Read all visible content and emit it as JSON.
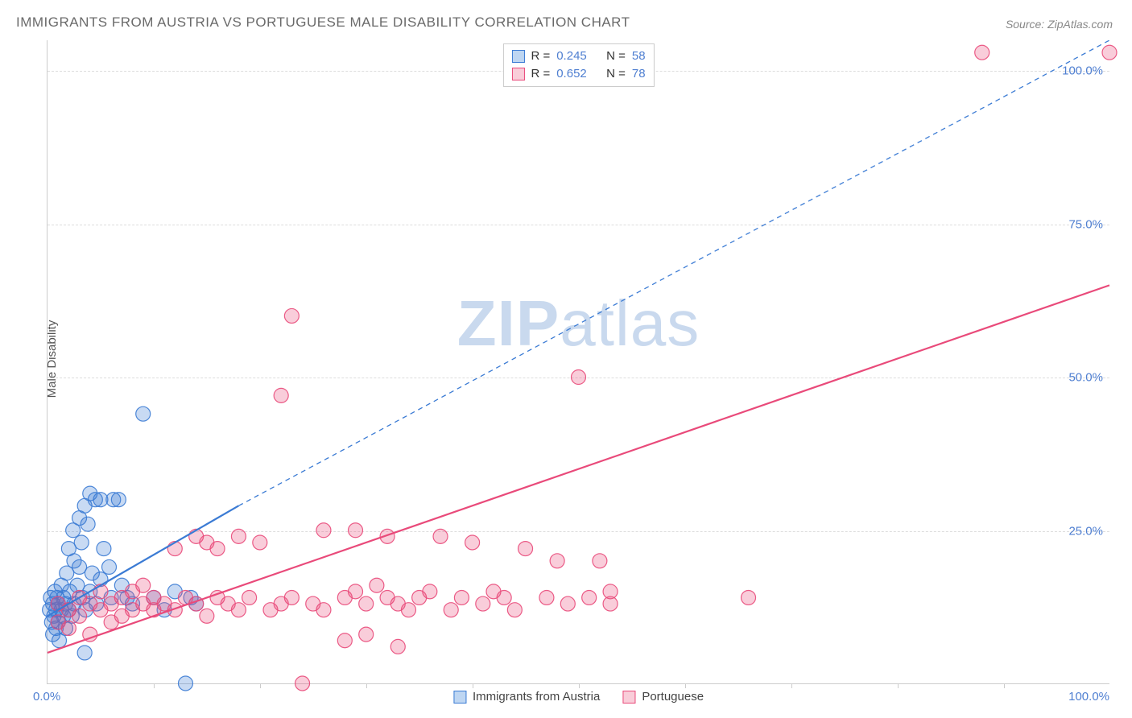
{
  "title": "IMMIGRANTS FROM AUSTRIA VS PORTUGUESE MALE DISABILITY CORRELATION CHART",
  "source_label": "Source: ZipAtlas.com",
  "watermark": {
    "bold": "ZIP",
    "light": "atlas",
    "color": "#c9d9ee"
  },
  "ylabel": "Male Disability",
  "chart": {
    "type": "scatter",
    "background_color": "#ffffff",
    "grid_color": "#dddddd",
    "axis_color": "#cccccc",
    "xlim": [
      0,
      100
    ],
    "ylim": [
      0,
      105
    ],
    "ytick_values": [
      25,
      50,
      75,
      100
    ],
    "ytick_labels": [
      "25.0%",
      "50.0%",
      "75.0%",
      "100.0%"
    ],
    "ytick_color": "#4f7fd1",
    "xtick_minor": [
      10,
      20,
      30,
      40,
      50,
      60,
      70,
      80,
      90
    ],
    "xtick_major": [
      0,
      100
    ],
    "xtick_labels": [
      "0.0%",
      "100.0%"
    ],
    "xtick_color": "#4f7fd1",
    "marker_radius": 9,
    "marker_fill_opacity": 0.28,
    "marker_stroke_opacity": 0.9,
    "marker_stroke_width": 1.2,
    "trend_line_width": 2.2,
    "trend_dash_line_width": 1.3
  },
  "series": [
    {
      "id": "austria",
      "label": "Immigrants from Austria",
      "color": "#3b7bd4",
      "fill_swatch": "#bed6f2",
      "stats": {
        "R": "0.245",
        "N": "58"
      },
      "trend_solid": {
        "x1": 0,
        "y1": 11,
        "x2": 18,
        "y2": 29
      },
      "trend_dash": {
        "x1": 18,
        "y1": 29,
        "x2": 100,
        "y2": 105
      },
      "points": [
        [
          0.2,
          12
        ],
        [
          0.3,
          14
        ],
        [
          0.4,
          10
        ],
        [
          0.5,
          13
        ],
        [
          0.5,
          8
        ],
        [
          0.6,
          11
        ],
        [
          0.7,
          15
        ],
        [
          0.8,
          12
        ],
        [
          0.8,
          9
        ],
        [
          0.9,
          14
        ],
        [
          1.0,
          10
        ],
        [
          1.0,
          13
        ],
        [
          1.1,
          7
        ],
        [
          1.3,
          12
        ],
        [
          1.3,
          16
        ],
        [
          1.5,
          11
        ],
        [
          1.5,
          14
        ],
        [
          1.7,
          13
        ],
        [
          1.7,
          9
        ],
        [
          1.8,
          18
        ],
        [
          2.0,
          12
        ],
        [
          2.0,
          22
        ],
        [
          2.1,
          15
        ],
        [
          2.3,
          11
        ],
        [
          2.4,
          25
        ],
        [
          2.5,
          13
        ],
        [
          2.5,
          20
        ],
        [
          2.8,
          16
        ],
        [
          3.0,
          27
        ],
        [
          3.0,
          19
        ],
        [
          3.2,
          23
        ],
        [
          3.3,
          14
        ],
        [
          3.5,
          29
        ],
        [
          3.6,
          12
        ],
        [
          3.8,
          26
        ],
        [
          4.0,
          15
        ],
        [
          4.0,
          31
        ],
        [
          4.2,
          18
        ],
        [
          4.5,
          30
        ],
        [
          4.6,
          13
        ],
        [
          5.0,
          30
        ],
        [
          5.0,
          17
        ],
        [
          5.3,
          22
        ],
        [
          5.8,
          19
        ],
        [
          6.0,
          14
        ],
        [
          6.2,
          30
        ],
        [
          6.7,
          30
        ],
        [
          7.0,
          16
        ],
        [
          7.5,
          14
        ],
        [
          8.0,
          13
        ],
        [
          9.0,
          44
        ],
        [
          10.0,
          14
        ],
        [
          11.0,
          12
        ],
        [
          12.0,
          15
        ],
        [
          13.0,
          0
        ],
        [
          13.5,
          14
        ],
        [
          14.0,
          13
        ],
        [
          3.5,
          5
        ]
      ]
    },
    {
      "id": "portuguese",
      "label": "Portuguese",
      "color": "#e94a7a",
      "fill_swatch": "#f9cdd9",
      "stats": {
        "R": "0.652",
        "N": "78"
      },
      "trend_solid": {
        "x1": 0,
        "y1": 5,
        "x2": 100,
        "y2": 65
      },
      "trend_dash": null,
      "points": [
        [
          1,
          10
        ],
        [
          1,
          13
        ],
        [
          2,
          12
        ],
        [
          2,
          9
        ],
        [
          3,
          14
        ],
        [
          3,
          11
        ],
        [
          4,
          13
        ],
        [
          4,
          8
        ],
        [
          5,
          12
        ],
        [
          5,
          15
        ],
        [
          6,
          10
        ],
        [
          6,
          13
        ],
        [
          7,
          14
        ],
        [
          7,
          11
        ],
        [
          8,
          12
        ],
        [
          8,
          15
        ],
        [
          9,
          13
        ],
        [
          9,
          16
        ],
        [
          10,
          12
        ],
        [
          10,
          14
        ],
        [
          11,
          13
        ],
        [
          12,
          22
        ],
        [
          12,
          12
        ],
        [
          13,
          14
        ],
        [
          14,
          24
        ],
        [
          14,
          13
        ],
        [
          15,
          23
        ],
        [
          15,
          11
        ],
        [
          16,
          22
        ],
        [
          16,
          14
        ],
        [
          17,
          13
        ],
        [
          18,
          24
        ],
        [
          18,
          12
        ],
        [
          19,
          14
        ],
        [
          20,
          23
        ],
        [
          21,
          12
        ],
        [
          22,
          13
        ],
        [
          22,
          47
        ],
        [
          23,
          14
        ],
        [
          23,
          60
        ],
        [
          24,
          0
        ],
        [
          25,
          13
        ],
        [
          26,
          25
        ],
        [
          26,
          12
        ],
        [
          28,
          14
        ],
        [
          28,
          7
        ],
        [
          29,
          15
        ],
        [
          29,
          25
        ],
        [
          30,
          13
        ],
        [
          31,
          16
        ],
        [
          32,
          14
        ],
        [
          32,
          24
        ],
        [
          33,
          13
        ],
        [
          33,
          6
        ],
        [
          34,
          12
        ],
        [
          35,
          14
        ],
        [
          36,
          15
        ],
        [
          37,
          24
        ],
        [
          38,
          12
        ],
        [
          39,
          14
        ],
        [
          40,
          23
        ],
        [
          41,
          13
        ],
        [
          42,
          15
        ],
        [
          43,
          14
        ],
        [
          44,
          12
        ],
        [
          45,
          22
        ],
        [
          47,
          14
        ],
        [
          48,
          20
        ],
        [
          49,
          13
        ],
        [
          50,
          50
        ],
        [
          51,
          14
        ],
        [
          52,
          20
        ],
        [
          53,
          15
        ],
        [
          53,
          13
        ],
        [
          66,
          14
        ],
        [
          88,
          103
        ],
        [
          100,
          103
        ],
        [
          30,
          8
        ]
      ]
    }
  ],
  "stat_legend": {
    "R_label": "R =",
    "N_label": "N =",
    "value_color": "#4f7fd1",
    "key_color": "#333333",
    "border_color": "#cccccc",
    "font_size": 15
  }
}
